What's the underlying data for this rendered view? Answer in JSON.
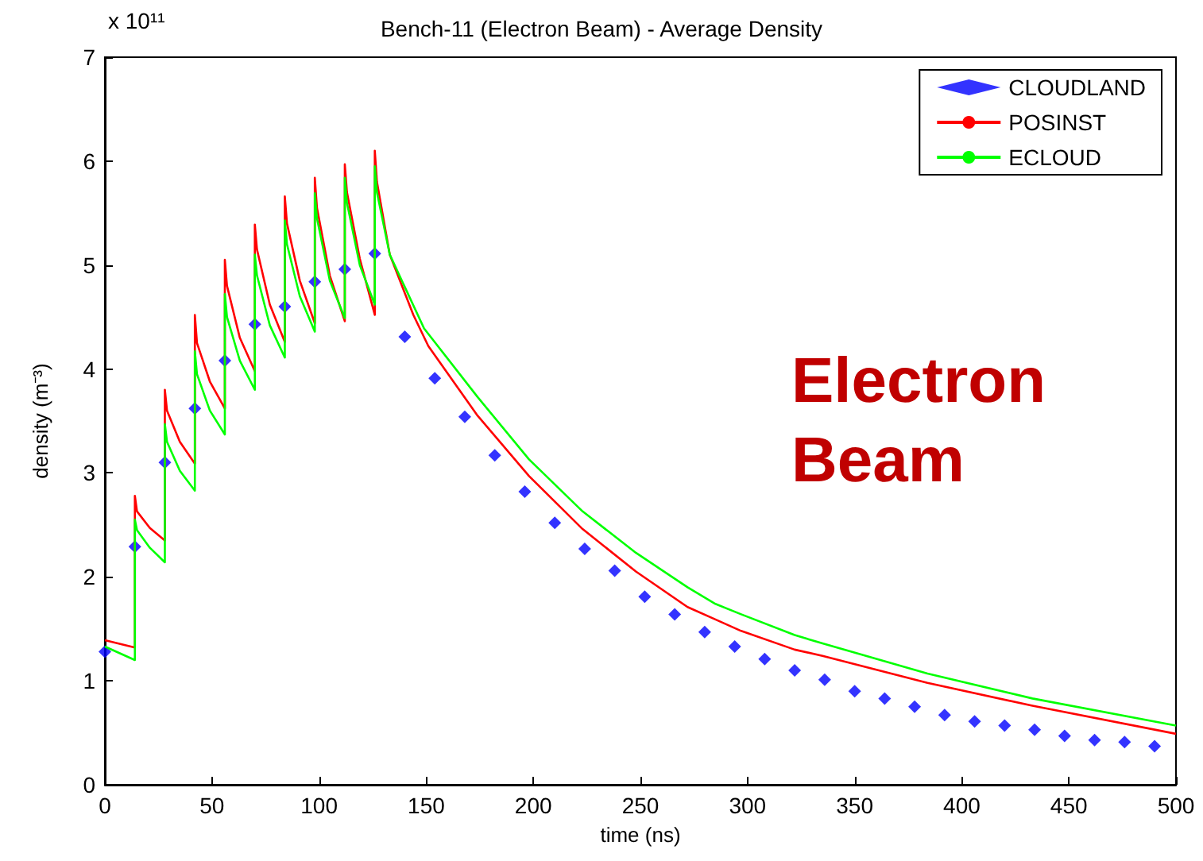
{
  "chart_data": {
    "type": "line",
    "title": "Bench-11 (Electron Beam) - Average Density",
    "xlabel": "time (ns)",
    "ylabel": "density (m⁻³)",
    "xlim": [
      0,
      500
    ],
    "xticks": [
      0,
      50,
      100,
      150,
      200,
      250,
      300,
      350,
      400,
      450,
      500
    ],
    "ylim": [
      0,
      7
    ],
    "yticks": [
      0,
      1,
      2,
      3,
      4,
      5,
      6,
      7
    ],
    "grid": false,
    "legend": "top right",
    "annotations": [
      "x 10¹¹",
      "Electron Beam"
    ],
    "series": [
      {
        "name": "CLOUDLAND",
        "type": "scatter",
        "marker": "diamond",
        "color": "#0000ff",
        "x": [
          0,
          14,
          28,
          42,
          56,
          70,
          84,
          98,
          112,
          126,
          140,
          154,
          168,
          182,
          196,
          210,
          224,
          238,
          252,
          266,
          280,
          294,
          308,
          322,
          336,
          350,
          364,
          378,
          392,
          406,
          420,
          434,
          448,
          462,
          476,
          490
        ],
        "values": [
          1.28,
          2.29,
          3.1,
          3.62,
          4.08,
          4.43,
          4.6,
          4.84,
          4.96,
          5.11,
          4.31,
          3.91,
          3.54,
          3.17,
          2.82,
          2.52,
          2.27,
          2.06,
          1.81,
          1.64,
          1.47,
          1.33,
          1.21,
          1.1,
          1.01,
          0.9,
          0.83,
          0.75,
          0.67,
          0.61,
          0.57,
          0.53,
          0.47,
          0.43,
          0.41,
          0.37
        ]
      },
      {
        "name": "POSINST",
        "marker": "none",
        "color": "#ff0000",
        "x": [
          0,
          14,
          14,
          15,
          21,
          28,
          28,
          29,
          35,
          42,
          42,
          43,
          49,
          56,
          56,
          57,
          63,
          70,
          70,
          71,
          77,
          84,
          84,
          85,
          91,
          98,
          98,
          99,
          105,
          112,
          112,
          113,
          119,
          126,
          126,
          127,
          133,
          144,
          151,
          174,
          198,
          223,
          248,
          272,
          285,
          297,
          322,
          335,
          384,
          433,
          500
        ],
        "values": [
          1.39,
          1.32,
          2.78,
          2.63,
          2.47,
          2.35,
          3.8,
          3.6,
          3.3,
          3.09,
          4.52,
          4.25,
          3.88,
          3.62,
          5.05,
          4.8,
          4.3,
          3.98,
          5.39,
          5.15,
          4.62,
          4.26,
          5.66,
          5.4,
          4.85,
          4.44,
          5.84,
          5.55,
          4.9,
          4.46,
          5.97,
          5.7,
          5.06,
          4.52,
          6.1,
          5.8,
          5.1,
          4.52,
          4.22,
          3.55,
          2.97,
          2.46,
          2.05,
          1.71,
          1.59,
          1.48,
          1.3,
          1.24,
          0.98,
          0.76,
          0.49
        ]
      },
      {
        "name": "ECLOUD",
        "marker": "none",
        "color": "#00ff00",
        "x": [
          0,
          14,
          14,
          15,
          21,
          28,
          28,
          29,
          35,
          42,
          42,
          43,
          49,
          56,
          56,
          57,
          63,
          70,
          70,
          71,
          77,
          84,
          84,
          85,
          91,
          98,
          98,
          99,
          105,
          112,
          112,
          113,
          119,
          126,
          126,
          127,
          133,
          149,
          174,
          198,
          223,
          248,
          272,
          285,
          297,
          322,
          335,
          384,
          433,
          500
        ],
        "values": [
          1.33,
          1.2,
          2.55,
          2.45,
          2.28,
          2.14,
          3.47,
          3.3,
          3.02,
          2.83,
          4.17,
          3.95,
          3.6,
          3.37,
          4.72,
          4.5,
          4.08,
          3.8,
          5.1,
          4.9,
          4.42,
          4.11,
          5.43,
          5.2,
          4.7,
          4.36,
          5.69,
          5.45,
          4.85,
          4.49,
          5.84,
          5.6,
          5.0,
          4.62,
          5.95,
          5.7,
          5.1,
          4.39,
          3.73,
          3.13,
          2.63,
          2.23,
          1.9,
          1.74,
          1.64,
          1.44,
          1.36,
          1.07,
          0.83,
          0.57
        ]
      }
    ]
  }
}
